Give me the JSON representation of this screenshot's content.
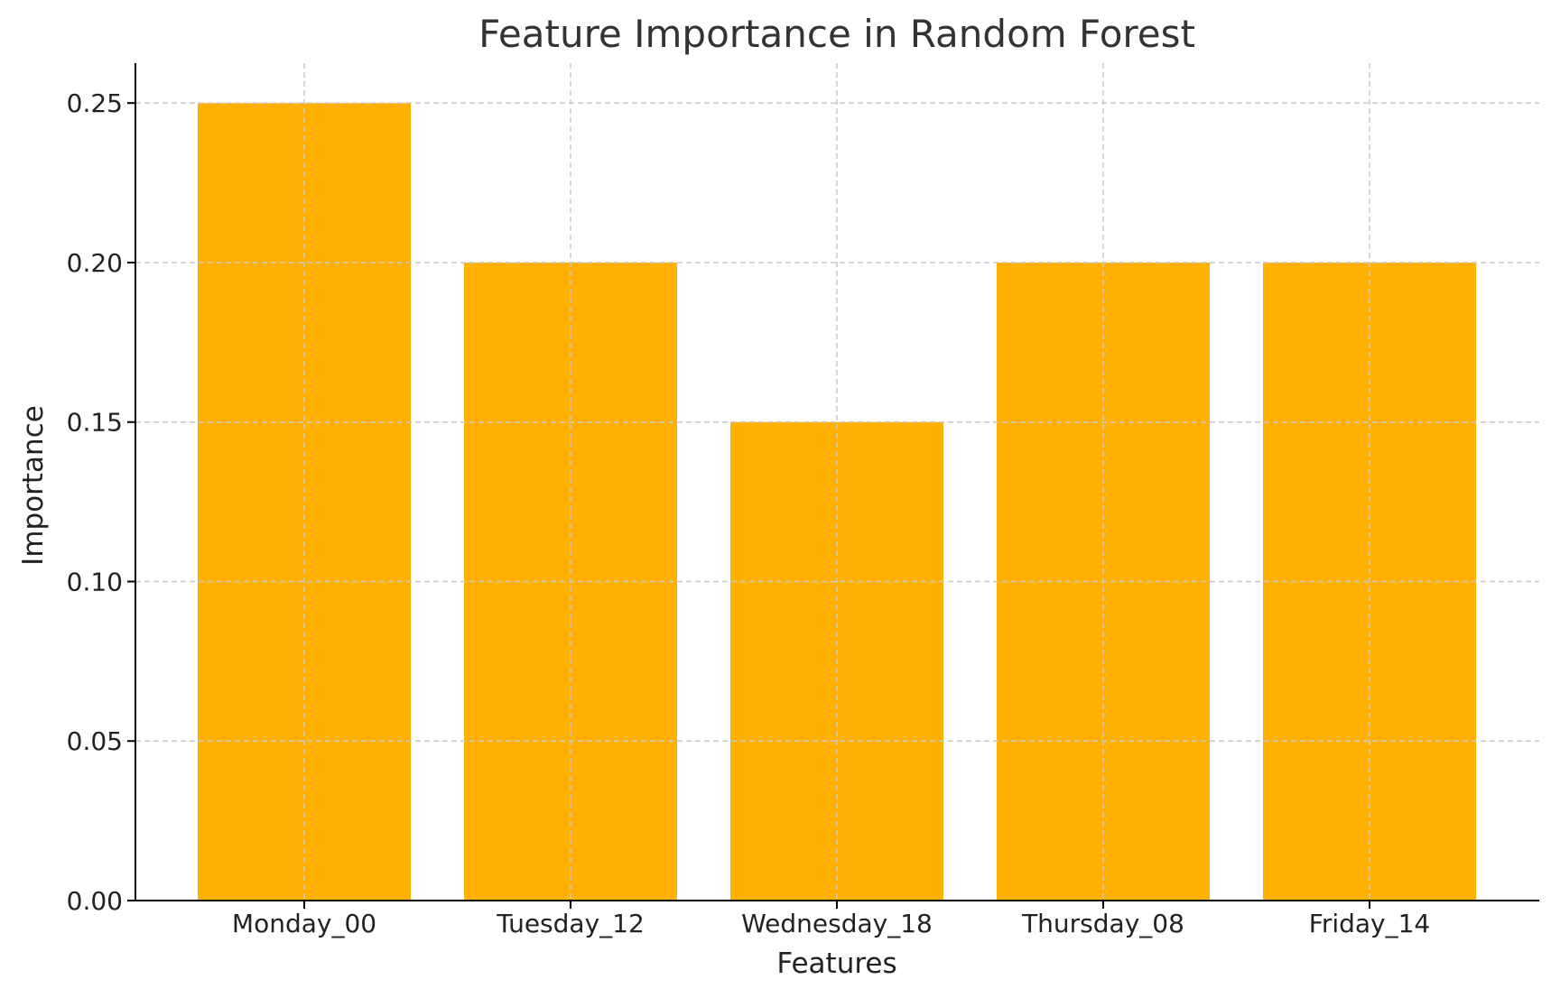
{
  "chart_data": {
    "type": "bar",
    "title": "Feature Importance in Random Forest",
    "xlabel": "Features",
    "ylabel": "Importance",
    "categories": [
      "Monday_00",
      "Tuesday_12",
      "Wednesday_18",
      "Thursday_08",
      "Friday_14"
    ],
    "values": [
      0.25,
      0.2,
      0.15,
      0.2,
      0.2
    ],
    "ylim": [
      0,
      0.2625
    ],
    "yticks": [
      0.0,
      0.05,
      0.1,
      0.15,
      0.2,
      0.25
    ],
    "ytick_labels": [
      "0.00",
      "0.05",
      "0.10",
      "0.15",
      "0.20",
      "0.25"
    ],
    "grid": true,
    "grid_style": "dashed",
    "bar_color": "#ffb000",
    "grid_color": "#c8c8c8",
    "axis_color": "#000000",
    "title_color": "#333333",
    "text_color": "#222222"
  }
}
